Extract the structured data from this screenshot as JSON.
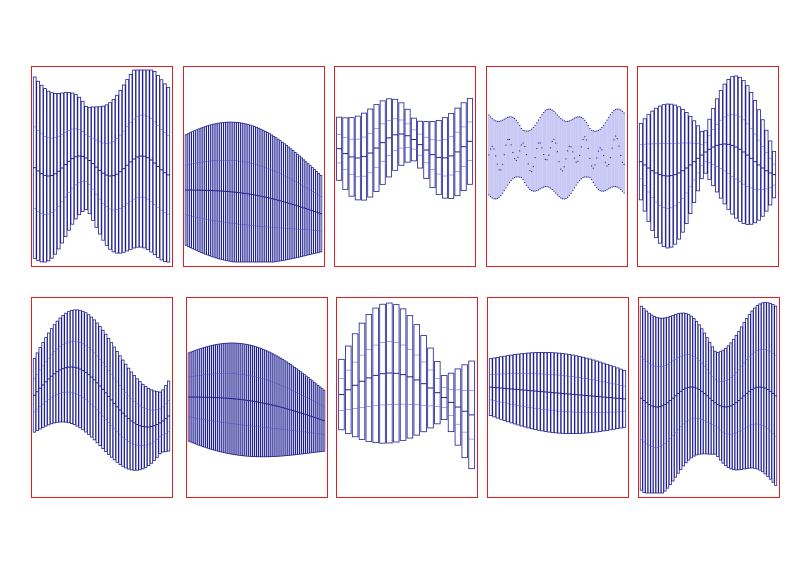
{
  "colors": {
    "panel_border": "#e02020",
    "box_fill": "#ffffff",
    "box_stroke": "#1f1f8f",
    "whisker": "#6a6ae6",
    "dense_fill": "#c8c8f4",
    "background": "#ffffff"
  },
  "chart_data": [
    {
      "type": "boxplot",
      "panel": 1,
      "n_boxes": 40,
      "shape": "double",
      "amp": 0.46,
      "center": 0.5,
      "phase": 0.3,
      "freq": 2.2,
      "beat": 1.1
    },
    {
      "type": "boxplot",
      "panel": 2,
      "n_boxes": 64,
      "shape": "droop",
      "amp": 0.35,
      "center": 0.62,
      "phase": 0.0,
      "freq": 1.0
    },
    {
      "type": "boxplot",
      "panel": 3,
      "n_boxes": 22,
      "shape": "lumpy",
      "amp": 0.22,
      "center": 0.4,
      "phase": 0.5,
      "freq": 1.6
    },
    {
      "type": "boxplot",
      "panel": 4,
      "n_boxes": 80,
      "shape": "dense",
      "amp": 0.2,
      "center": 0.44,
      "phase": 0.0,
      "freq": 4.0
    },
    {
      "type": "boxplot",
      "panel": 5,
      "n_boxes": 36,
      "shape": "growing",
      "amp": 0.36,
      "center": 0.47,
      "phase": 0.0,
      "freq": 1.9
    },
    {
      "type": "boxplot",
      "panel": 6,
      "n_boxes": 48,
      "shape": "swing",
      "amp": 0.3,
      "center": 0.5,
      "phase": 0.0,
      "freq": 1.0
    },
    {
      "type": "boxplot",
      "panel": 7,
      "n_boxes": 70,
      "shape": "droop",
      "amp": 0.28,
      "center": 0.5,
      "phase": 0.0,
      "freq": 1.0
    },
    {
      "type": "boxplot",
      "panel": 8,
      "n_boxes": 20,
      "shape": "hump",
      "amp": 0.35,
      "center": 0.5,
      "phase": 0.0,
      "freq": 1.2
    },
    {
      "type": "boxplot",
      "panel": 9,
      "n_boxes": 40,
      "shape": "step",
      "amp": 0.2,
      "center": 0.45,
      "phase": 0.0,
      "freq": 1.0
    },
    {
      "type": "boxplot",
      "panel": 10,
      "n_boxes": 52,
      "shape": "double",
      "amp": 0.46,
      "center": 0.5,
      "phase": 0.0,
      "freq": 2.0,
      "beat": 0.9
    }
  ]
}
